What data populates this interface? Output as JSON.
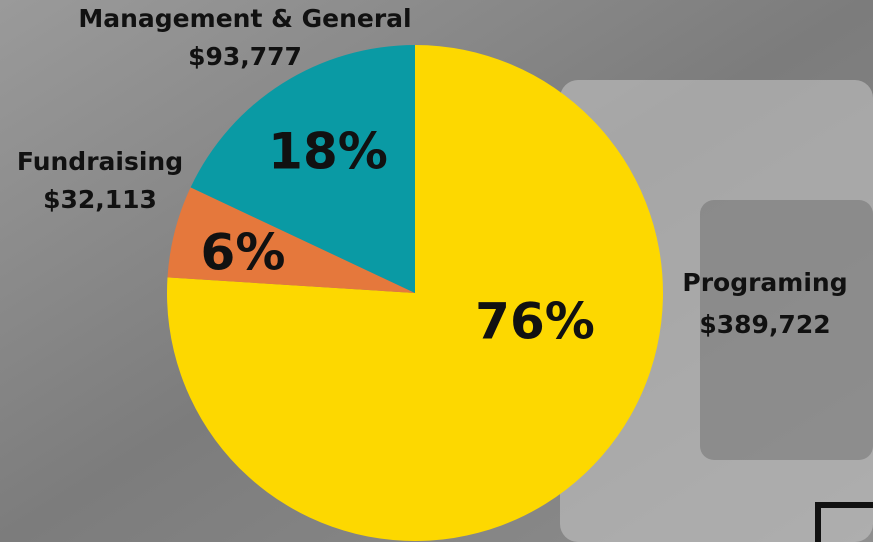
{
  "chart_data": {
    "type": "pie",
    "categories": [
      "Programing",
      "Fundraising",
      "Management & General"
    ],
    "values": [
      76,
      6,
      18
    ],
    "value_labels": [
      "76%",
      "6%",
      "18%"
    ],
    "amounts": [
      389722,
      32113,
      93777
    ],
    "amount_labels": [
      "$389,722",
      "$32,113",
      "$93,777"
    ],
    "colors": [
      "#fdd800",
      "#e5783c",
      "#0a9aa4"
    ],
    "start_angle": 0,
    "direction": "clockwise"
  }
}
